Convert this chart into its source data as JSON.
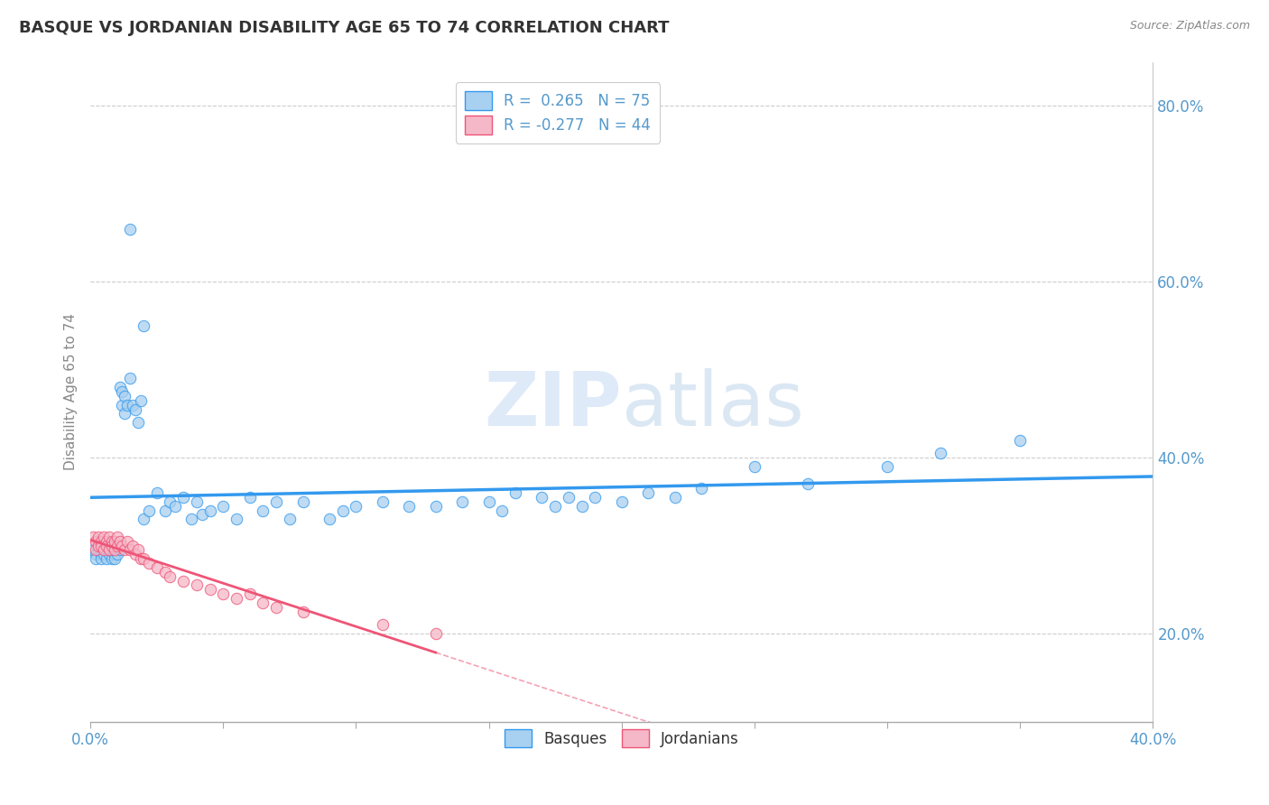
{
  "title": "BASQUE VS JORDANIAN DISABILITY AGE 65 TO 74 CORRELATION CHART",
  "source_text": "Source: ZipAtlas.com",
  "ylabel": "Disability Age 65 to 74",
  "xlim": [
    0.0,
    0.4
  ],
  "ylim": [
    0.1,
    0.85
  ],
  "xtick_vals": [
    0.0,
    0.05,
    0.1,
    0.15,
    0.2,
    0.25,
    0.3,
    0.35,
    0.4
  ],
  "xticklabels": [
    "0.0%",
    "",
    "",
    "",
    "",
    "",
    "",
    "",
    "40.0%"
  ],
  "yticks_right": [
    0.2,
    0.4,
    0.6,
    0.8
  ],
  "ytick_labels_right": [
    "20.0%",
    "40.0%",
    "60.0%",
    "80.0%"
  ],
  "basque_R": 0.265,
  "basque_N": 75,
  "jordanian_R": -0.277,
  "jordanian_N": 44,
  "basque_color": "#a8d0f0",
  "jordanian_color": "#f5b8c8",
  "basque_line_color": "#3399ee",
  "jordanian_line_color": "#ee5577",
  "tick_color": "#5599cc",
  "title_color": "#333333",
  "watermark_color": "#c8dff5",
  "basque_x": [
    0.001,
    0.002,
    0.002,
    0.003,
    0.003,
    0.004,
    0.004,
    0.005,
    0.005,
    0.006,
    0.006,
    0.007,
    0.007,
    0.008,
    0.008,
    0.009,
    0.009,
    0.01,
    0.01,
    0.011,
    0.011,
    0.012,
    0.012,
    0.013,
    0.013,
    0.014,
    0.015,
    0.016,
    0.017,
    0.018,
    0.019,
    0.02,
    0.022,
    0.025,
    0.028,
    0.03,
    0.032,
    0.035,
    0.038,
    0.04,
    0.042,
    0.045,
    0.05,
    0.055,
    0.06,
    0.065,
    0.07,
    0.075,
    0.08,
    0.09,
    0.095,
    0.1,
    0.11,
    0.12,
    0.13,
    0.14,
    0.15,
    0.155,
    0.16,
    0.17,
    0.175,
    0.18,
    0.185,
    0.19,
    0.2,
    0.21,
    0.22,
    0.23,
    0.25,
    0.27,
    0.3,
    0.32,
    0.35,
    0.015,
    0.02
  ],
  "basque_y": [
    0.295,
    0.29,
    0.285,
    0.3,
    0.295,
    0.29,
    0.285,
    0.295,
    0.29,
    0.295,
    0.285,
    0.29,
    0.3,
    0.285,
    0.295,
    0.29,
    0.285,
    0.3,
    0.29,
    0.295,
    0.48,
    0.46,
    0.475,
    0.45,
    0.47,
    0.46,
    0.49,
    0.46,
    0.455,
    0.44,
    0.465,
    0.33,
    0.34,
    0.36,
    0.34,
    0.35,
    0.345,
    0.355,
    0.33,
    0.35,
    0.335,
    0.34,
    0.345,
    0.33,
    0.355,
    0.34,
    0.35,
    0.33,
    0.35,
    0.33,
    0.34,
    0.345,
    0.35,
    0.345,
    0.345,
    0.35,
    0.35,
    0.34,
    0.36,
    0.355,
    0.345,
    0.355,
    0.345,
    0.355,
    0.35,
    0.36,
    0.355,
    0.365,
    0.39,
    0.37,
    0.39,
    0.405,
    0.42,
    0.66,
    0.55
  ],
  "jordanian_x": [
    0.001,
    0.002,
    0.002,
    0.003,
    0.003,
    0.004,
    0.004,
    0.005,
    0.005,
    0.006,
    0.006,
    0.007,
    0.007,
    0.008,
    0.008,
    0.009,
    0.009,
    0.01,
    0.01,
    0.011,
    0.012,
    0.013,
    0.014,
    0.015,
    0.016,
    0.017,
    0.018,
    0.019,
    0.02,
    0.022,
    0.025,
    0.028,
    0.03,
    0.035,
    0.04,
    0.045,
    0.05,
    0.055,
    0.06,
    0.065,
    0.07,
    0.08,
    0.11,
    0.13
  ],
  "jordanian_y": [
    0.31,
    0.305,
    0.295,
    0.31,
    0.3,
    0.305,
    0.3,
    0.31,
    0.295,
    0.305,
    0.3,
    0.31,
    0.295,
    0.305,
    0.3,
    0.305,
    0.295,
    0.31,
    0.3,
    0.305,
    0.3,
    0.295,
    0.305,
    0.295,
    0.3,
    0.29,
    0.295,
    0.285,
    0.285,
    0.28,
    0.275,
    0.27,
    0.265,
    0.26,
    0.255,
    0.25,
    0.245,
    0.24,
    0.245,
    0.235,
    0.23,
    0.225,
    0.21,
    0.2
  ]
}
